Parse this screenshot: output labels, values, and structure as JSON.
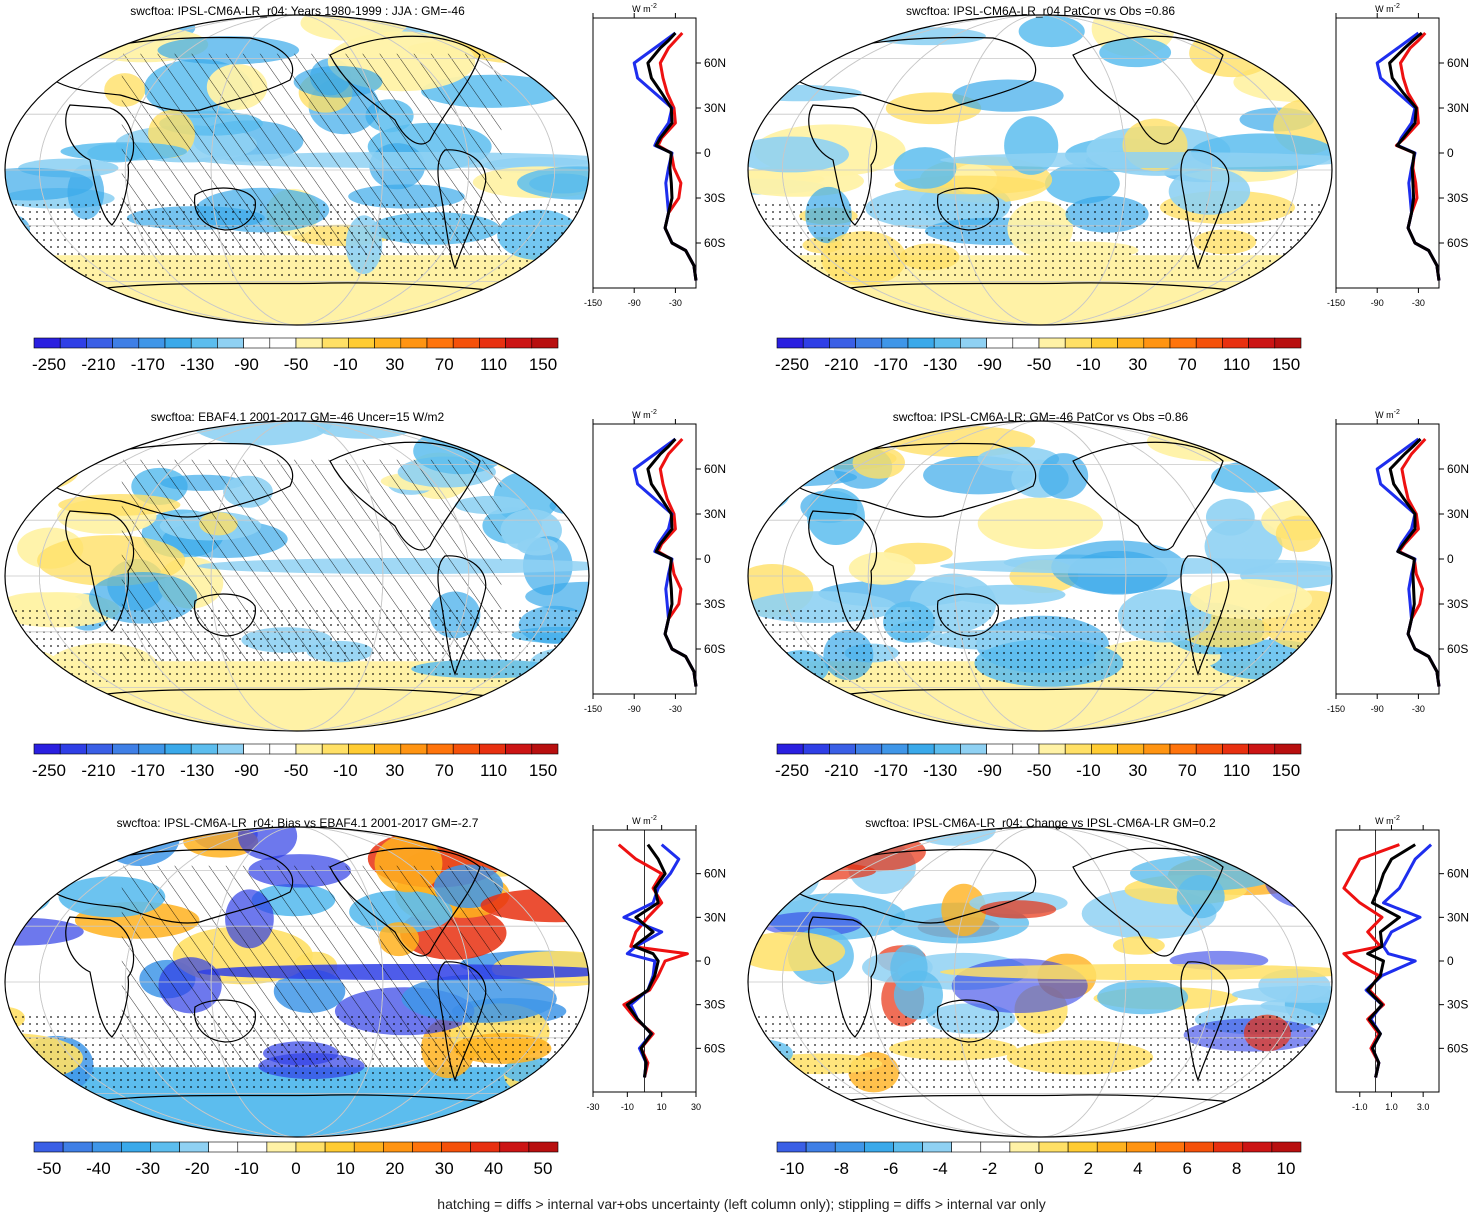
{
  "footnote": "hatching = diffs > internal var+obs uncertainty (left column only); stippling = diffs > internal var only",
  "colors": {
    "palette_main": [
      "#2a1fe0",
      "#2f3fe6",
      "#3a5fe6",
      "#3f7fe6",
      "#3f96e8",
      "#3aa9ea",
      "#5cbdee",
      "#8fd1f3",
      "#ffffff",
      "#ffffff",
      "#fff2a6",
      "#ffe066",
      "#ffcc33",
      "#ffb21f",
      "#ff9412",
      "#ff740c",
      "#f5510a",
      "#e83010",
      "#cc1414",
      "#b80f0f"
    ],
    "zonal_model": "#ee1111",
    "zonal_obs": "#1e2eee",
    "zonal_mean": "#000000"
  },
  "unit_label": "W m",
  "unit_sup": "-2",
  "lat_ticks": [
    "60N",
    "30N",
    "0",
    "30S",
    "60S"
  ],
  "panels": [
    {
      "id": "p1",
      "title": "swcftoa: IPSL-CM6A-LR_r04: Years 1980-1999 : JJA : GM=-46",
      "hatch": true,
      "stipple": true,
      "scheme": "clim",
      "colorbar_labels": [
        "-250",
        "-210",
        "-170",
        "-130",
        "-90",
        "-50",
        "-10",
        "30",
        "70",
        "110",
        "150"
      ],
      "zonal_xticks": [
        "-150",
        "-90",
        "-30"
      ]
    },
    {
      "id": "p2",
      "title": "swcftoa: IPSL-CM6A-LR_r04 PatCor vs Obs =0.86",
      "hatch": false,
      "stipple": true,
      "scheme": "clim",
      "colorbar_labels": [
        "-250",
        "-210",
        "-170",
        "-130",
        "-90",
        "-50",
        "-10",
        "30",
        "70",
        "110",
        "150"
      ],
      "zonal_xticks": [
        "-150",
        "-90",
        "-30"
      ]
    },
    {
      "id": "p3",
      "title": "swcftoa: EBAF4.1 2001-2017 GM=-46 Uncer=15 W/m2",
      "hatch": true,
      "stipple": true,
      "scheme": "clim",
      "colorbar_labels": [
        "-250",
        "-210",
        "-170",
        "-130",
        "-90",
        "-50",
        "-10",
        "30",
        "70",
        "110",
        "150"
      ],
      "zonal_xticks": [
        "-150",
        "-90",
        "-30"
      ]
    },
    {
      "id": "p4",
      "title": "swcftoa: IPSL-CM6A-LR: GM=-46 PatCor vs Obs =0.86",
      "hatch": false,
      "stipple": true,
      "scheme": "clim",
      "colorbar_labels": [
        "-250",
        "-210",
        "-170",
        "-130",
        "-90",
        "-50",
        "-10",
        "30",
        "70",
        "110",
        "150"
      ],
      "zonal_xticks": [
        "-150",
        "-90",
        "-30"
      ]
    },
    {
      "id": "p5",
      "title": "swcftoa: IPSL-CM6A-LR_r04: Bias vs EBAF4.1 2001-2017 GM=-2.7",
      "hatch": true,
      "stipple": true,
      "scheme": "bias",
      "colorbar_labels": [
        "-50",
        "-40",
        "-30",
        "-20",
        "-10",
        "0",
        "10",
        "20",
        "30",
        "40",
        "50"
      ],
      "zonal_xticks": [
        "-30",
        "-10",
        "10",
        "30"
      ]
    },
    {
      "id": "p6",
      "title": "swcftoa: IPSL-CM6A-LR_r04: Change vs IPSL-CM6A-LR GM=0.2",
      "hatch": false,
      "stipple": true,
      "scheme": "change",
      "colorbar_labels": [
        "-10",
        "-8",
        "-6",
        "-4",
        "-2",
        "0",
        "2",
        "4",
        "6",
        "8",
        "10"
      ],
      "zonal_xticks": [
        "-1.0",
        "1.0",
        "3.0"
      ]
    }
  ],
  "chart_data": [
    {
      "type": "line",
      "title": "swcftoa: IPSL-CM6A-LR_r04: Years 1980-1999 : JJA : GM=-46",
      "xlim": [
        -150,
        0
      ],
      "ylim": [
        -90,
        90
      ],
      "series": [
        {
          "color": "red",
          "y": [
            -85,
            -75,
            -65,
            -60,
            -50,
            -40,
            -30,
            -20,
            -10,
            0,
            5,
            10,
            20,
            30,
            40,
            50,
            60,
            70,
            75,
            80
          ],
          "values": [
            0,
            -3,
            -15,
            -35,
            -45,
            -40,
            -25,
            -22,
            -32,
            -36,
            -55,
            -50,
            -30,
            -32,
            -42,
            -48,
            -52,
            -40,
            -30,
            -20
          ]
        },
        {
          "color": "blue",
          "y": [
            -85,
            -75,
            -65,
            -60,
            -50,
            -40,
            -30,
            -20,
            -10,
            0,
            5,
            10,
            20,
            30,
            40,
            50,
            60,
            70,
            75,
            80
          ],
          "values": [
            0,
            -3,
            -15,
            -35,
            -45,
            -40,
            -42,
            -44,
            -40,
            -35,
            -60,
            -55,
            -40,
            -35,
            -60,
            -85,
            -90,
            -60,
            -45,
            -30
          ]
        },
        {
          "color": "black",
          "y": [
            -85,
            -75,
            -65,
            -60,
            -50,
            -40,
            -30,
            -20,
            -10,
            0,
            5,
            10,
            20,
            30,
            40,
            50,
            60,
            70,
            75,
            80
          ],
          "values": [
            0,
            -3,
            -15,
            -35,
            -45,
            -40,
            -35,
            -36,
            -38,
            -36,
            -58,
            -52,
            -35,
            -36,
            -50,
            -65,
            -70,
            -52,
            -40,
            -30
          ]
        }
      ]
    },
    {
      "type": "line",
      "title": "swcftoa: IPSL-CM6A-LR_r04 PatCor vs Obs =0.86",
      "xlim": [
        -150,
        0
      ],
      "ylim": [
        -90,
        90
      ],
      "series": [
        {
          "color": "red",
          "y": [
            -85,
            -75,
            -65,
            -60,
            -50,
            -40,
            -30,
            -20,
            -10,
            0,
            5,
            10,
            20,
            30,
            40,
            50,
            60,
            70,
            75,
            80
          ],
          "values": [
            0,
            -3,
            -15,
            -35,
            -45,
            -40,
            -32,
            -34,
            -38,
            -36,
            -62,
            -50,
            -30,
            -32,
            -45,
            -52,
            -56,
            -42,
            -30,
            -20
          ]
        },
        {
          "color": "blue",
          "y": [
            -85,
            -75,
            -65,
            -60,
            -50,
            -40,
            -30,
            -20,
            -10,
            0,
            5,
            10,
            20,
            30,
            40,
            50,
            60,
            70,
            75,
            80
          ],
          "values": [
            0,
            -3,
            -15,
            -35,
            -45,
            -40,
            -42,
            -44,
            -40,
            -35,
            -60,
            -55,
            -40,
            -35,
            -60,
            -85,
            -90,
            -60,
            -45,
            -30
          ]
        },
        {
          "color": "black",
          "y": [
            -85,
            -75,
            -65,
            -60,
            -50,
            -40,
            -30,
            -20,
            -10,
            0,
            5,
            10,
            20,
            30,
            40,
            50,
            60,
            70,
            75,
            80
          ],
          "values": [
            0,
            -3,
            -15,
            -35,
            -45,
            -40,
            -37,
            -38,
            -39,
            -36,
            -61,
            -52,
            -35,
            -33,
            -52,
            -68,
            -72,
            -50,
            -38,
            -25
          ]
        }
      ]
    },
    {
      "type": "line",
      "title": "swcftoa: EBAF4.1 2001-2017 GM=-46 Uncer=15 W/m2",
      "xlim": [
        -150,
        0
      ],
      "ylim": [
        -90,
        90
      ],
      "series": [
        {
          "color": "red",
          "y": [
            -85,
            -75,
            -65,
            -60,
            -50,
            -40,
            -30,
            -20,
            -10,
            0,
            5,
            10,
            20,
            30,
            40,
            50,
            60,
            70,
            75,
            80
          ],
          "values": [
            0,
            -3,
            -15,
            -35,
            -45,
            -40,
            -25,
            -22,
            -32,
            -36,
            -55,
            -50,
            -30,
            -32,
            -42,
            -48,
            -52,
            -40,
            -30,
            -20
          ]
        },
        {
          "color": "blue",
          "y": [
            -85,
            -75,
            -65,
            -60,
            -50,
            -40,
            -30,
            -20,
            -10,
            0,
            5,
            10,
            20,
            30,
            40,
            50,
            60,
            70,
            75,
            80
          ],
          "values": [
            0,
            -3,
            -15,
            -35,
            -45,
            -40,
            -42,
            -44,
            -40,
            -35,
            -60,
            -55,
            -40,
            -35,
            -60,
            -85,
            -90,
            -60,
            -45,
            -30
          ]
        },
        {
          "color": "black",
          "y": [
            -85,
            -75,
            -65,
            -60,
            -50,
            -40,
            -30,
            -20,
            -10,
            0,
            5,
            10,
            20,
            30,
            40,
            50,
            60,
            70,
            75,
            80
          ],
          "values": [
            0,
            -3,
            -15,
            -35,
            -45,
            -40,
            -35,
            -36,
            -38,
            -36,
            -58,
            -52,
            -35,
            -36,
            -50,
            -65,
            -70,
            -52,
            -40,
            -30
          ]
        }
      ]
    },
    {
      "type": "line",
      "title": "swcftoa: IPSL-CM6A-LR: GM=-46 PatCor vs Obs =0.86",
      "xlim": [
        -150,
        0
      ],
      "ylim": [
        -90,
        90
      ],
      "series": [
        {
          "color": "red",
          "y": [
            -85,
            -75,
            -65,
            -60,
            -50,
            -40,
            -30,
            -20,
            -10,
            0,
            5,
            10,
            20,
            30,
            40,
            50,
            60,
            70,
            75,
            80
          ],
          "values": [
            0,
            -3,
            -15,
            -35,
            -45,
            -40,
            -28,
            -24,
            -33,
            -36,
            -58,
            -50,
            -30,
            -33,
            -45,
            -50,
            -54,
            -40,
            -30,
            -20
          ]
        },
        {
          "color": "blue",
          "y": [
            -85,
            -75,
            -65,
            -60,
            -50,
            -40,
            -30,
            -20,
            -10,
            0,
            5,
            10,
            20,
            30,
            40,
            50,
            60,
            70,
            75,
            80
          ],
          "values": [
            0,
            -3,
            -15,
            -35,
            -45,
            -40,
            -42,
            -44,
            -40,
            -35,
            -60,
            -55,
            -40,
            -35,
            -60,
            -85,
            -90,
            -60,
            -45,
            -30
          ]
        },
        {
          "color": "black",
          "y": [
            -85,
            -75,
            -65,
            -60,
            -50,
            -40,
            -30,
            -20,
            -10,
            0,
            5,
            10,
            20,
            30,
            40,
            50,
            60,
            70,
            75,
            80
          ],
          "values": [
            0,
            -3,
            -15,
            -35,
            -45,
            -40,
            -36,
            -37,
            -38,
            -36,
            -60,
            -52,
            -35,
            -35,
            -51,
            -66,
            -71,
            -50,
            -38,
            -27
          ]
        }
      ]
    },
    {
      "type": "line",
      "title": "swcftoa: IPSL-CM6A-LR_r04: Bias vs EBAF4.1 2001-2017 GM=-2.7",
      "xlim": [
        -30,
        30
      ],
      "ylim": [
        -90,
        90
      ],
      "series": [
        {
          "color": "red",
          "y": [
            -80,
            -70,
            -60,
            -50,
            -40,
            -30,
            -20,
            -10,
            0,
            5,
            10,
            20,
            30,
            40,
            50,
            60,
            70,
            80
          ],
          "values": [
            0,
            2,
            -2,
            5,
            -5,
            -12,
            3,
            8,
            12,
            25,
            -8,
            -5,
            2,
            10,
            5,
            10,
            -5,
            -15
          ]
        },
        {
          "color": "blue",
          "y": [
            -80,
            -70,
            -60,
            -50,
            -40,
            -30,
            -20,
            -10,
            0,
            5,
            10,
            20,
            30,
            40,
            50,
            60,
            70,
            80
          ],
          "values": [
            0,
            1,
            -3,
            4,
            -4,
            -8,
            2,
            5,
            6,
            -10,
            -5,
            10,
            -12,
            5,
            8,
            15,
            20,
            10
          ]
        },
        {
          "color": "black",
          "y": [
            -80,
            -70,
            -60,
            -50,
            -40,
            -30,
            -20,
            -10,
            0,
            5,
            10,
            20,
            30,
            40,
            50,
            60,
            70,
            80
          ],
          "values": [
            0,
            1,
            -2,
            4,
            -4,
            -10,
            2,
            6,
            8,
            5,
            -6,
            5,
            -5,
            8,
            6,
            12,
            8,
            2
          ]
        }
      ]
    },
    {
      "type": "line",
      "title": "swcftoa: IPSL-CM6A-LR_r04: Change vs IPSL-CM6A-LR GM=0.2",
      "xlim": [
        -2.5,
        4.0
      ],
      "ylim": [
        -90,
        90
      ],
      "series": [
        {
          "color": "red",
          "y": [
            -80,
            -70,
            -60,
            -50,
            -40,
            -30,
            -20,
            -10,
            0,
            5,
            10,
            20,
            30,
            40,
            50,
            60,
            70,
            80
          ],
          "values": [
            0,
            0.2,
            -0.3,
            0.2,
            -0.5,
            0.5,
            -0.4,
            0.2,
            -1.5,
            -2.0,
            0.3,
            -0.5,
            0.4,
            -1.0,
            -2.0,
            -1.5,
            -1.0,
            1.5
          ]
        },
        {
          "color": "blue",
          "y": [
            -80,
            -70,
            -60,
            -50,
            -40,
            -30,
            -20,
            -10,
            0,
            5,
            10,
            20,
            30,
            40,
            50,
            60,
            70,
            80
          ],
          "values": [
            0,
            0.2,
            -0.2,
            0.3,
            -0.3,
            0.4,
            -0.6,
            0.4,
            2.5,
            0.8,
            0.5,
            1.0,
            2.8,
            0.5,
            1.5,
            2.0,
            2.5,
            3.5
          ]
        },
        {
          "color": "black",
          "y": [
            -80,
            -70,
            -60,
            -50,
            -40,
            -30,
            -20,
            -10,
            0,
            5,
            10,
            20,
            30,
            40,
            50,
            60,
            70,
            80
          ],
          "values": [
            0,
            0.2,
            -0.2,
            0.3,
            -0.4,
            0.4,
            -0.5,
            0.3,
            0.5,
            -0.5,
            0.4,
            0.3,
            1.5,
            -0.2,
            0.2,
            0.5,
            1.0,
            2.5
          ]
        }
      ]
    }
  ]
}
